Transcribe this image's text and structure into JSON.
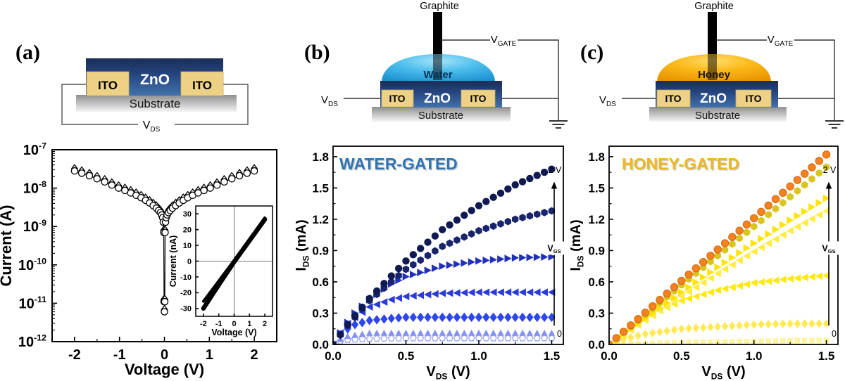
{
  "panels": {
    "a": {
      "label": "(a)",
      "schematic": {
        "zno": "ZnO",
        "ito_left": "ITO",
        "ito_right": "ITO",
        "substrate": "Substrate",
        "vds": {
          "main": "V",
          "sub": "DS"
        }
      }
    },
    "b": {
      "label": "(b)",
      "schematic": {
        "graphite": "Graphite",
        "liquid": "Water",
        "zno": "ZnO",
        "ito_left": "ITO",
        "ito_right": "ITO",
        "substrate": "Substrate",
        "vds": {
          "main": "V",
          "sub": "DS"
        },
        "vgate": {
          "main": "V",
          "sub": "GATE"
        }
      }
    },
    "c": {
      "label": "(c)",
      "schematic": {
        "graphite": "Graphite",
        "liquid": "Honey",
        "zno": "ZnO",
        "ito_left": "ITO",
        "ito_right": "ITO",
        "substrate": "Substrate",
        "vds": {
          "main": "V",
          "sub": "DS"
        },
        "vgate": {
          "main": "V",
          "sub": "GATE"
        }
      }
    }
  },
  "colors": {
    "water_accent": "#35B3E8",
    "honey_accent": "#F7AC00",
    "water_title": "#2E74B5",
    "honey_title": "#EFB71A",
    "zno_dark": "#1A2E57",
    "zno_light": "#4271AC",
    "ito_fill": "#EDD186"
  },
  "chart_data": [
    {
      "id": "iv_semilog",
      "type": "scatter",
      "xlabel": [
        {
          "t": "Voltage (V)"
        }
      ],
      "ylabel": [
        {
          "t": "Current (A)"
        }
      ],
      "xlim": [
        -2.5,
        2.5
      ],
      "ylog": true,
      "ylim_exp": [
        -12,
        -7
      ],
      "xticks": [
        -2,
        -1,
        0,
        1,
        2
      ],
      "xtick_labels": [
        "-2",
        "-1",
        "0",
        "1",
        "2"
      ],
      "x_minor": [
        -1.5,
        -0.5,
        0.5,
        1.5
      ],
      "ytick_exponents": [
        -7,
        -8,
        -9,
        -10,
        -11,
        -12
      ],
      "grid": false,
      "x": [
        -2.0,
        -1.84,
        -1.67,
        -1.5,
        -1.33,
        -1.17,
        -1.02,
        -0.88,
        -0.75,
        -0.63,
        -0.52,
        -0.42,
        -0.33,
        -0.25,
        -0.18,
        -0.13,
        -0.09,
        -0.06,
        -0.04,
        -0.025,
        -0.015,
        -0.008,
        0,
        0.008,
        0.015,
        0.025,
        0.04,
        0.06,
        0.09,
        0.13,
        0.18,
        0.25,
        0.33,
        0.42,
        0.52,
        0.63,
        0.75,
        0.88,
        1.02,
        1.17,
        1.33,
        1.5,
        1.67,
        1.84,
        2.0
      ],
      "y": [
        2.8e-08,
        2.45e-08,
        2.1e-08,
        1.75e-08,
        1.45e-08,
        1.2e-08,
        1e-08,
        8.7e-09,
        7.5e-09,
        6.5e-09,
        5.6e-09,
        4.8e-09,
        4.1e-09,
        3.5e-09,
        3e-09,
        2.6e-09,
        2.3e-09,
        2e-09,
        1.7e-09,
        1.3e-09,
        7e-10,
        1.1e-11,
        6e-12,
        1.1e-11,
        7e-10,
        1.3e-09,
        1.7e-09,
        2e-09,
        2.3e-09,
        2.6e-09,
        3e-09,
        3.5e-09,
        4.1e-09,
        4.8e-09,
        5.6e-09,
        6.5e-09,
        7.5e-09,
        8.7e-09,
        1e-08,
        1.2e-08,
        1.45e-08,
        1.75e-08,
        2.1e-08,
        2.45e-08,
        2.8e-08
      ],
      "series": [
        {
          "name": "sweep-circles",
          "marker": "circle",
          "open": true,
          "color": "#000000",
          "size": 4.6,
          "y_scale": 1
        },
        {
          "name": "sweep-diamonds",
          "marker": "diamond",
          "open": true,
          "color": "#000000",
          "size": 4.4,
          "y_scale": 1.15
        }
      ],
      "connect_line": true
    },
    {
      "id": "iv_linear_inset",
      "type": "line",
      "xlabel": [
        {
          "t": "Voltage (V)"
        }
      ],
      "ylabel": [
        {
          "t": "Current (nA)"
        }
      ],
      "xlim": [
        -2.5,
        2.5
      ],
      "ylim": [
        -35,
        35
      ],
      "xticks": [
        -2,
        -1,
        0,
        1,
        2
      ],
      "xtick_labels": [
        "-2",
        "-1",
        "0",
        "1",
        "2"
      ],
      "yticks": [
        -30,
        -20,
        -10,
        0,
        10,
        20,
        30
      ],
      "ytick_labels": [
        "-30",
        "-20",
        "-10",
        "0",
        "10",
        "20",
        "30"
      ],
      "crosshair": true,
      "series": [
        {
          "name": "sweep-band-1",
          "line": true,
          "width": 6.5,
          "color": "#000000",
          "x": [
            -2,
            -1,
            0,
            1,
            2
          ],
          "y": [
            -30,
            -15,
            -0.5,
            13,
            26.5
          ]
        },
        {
          "name": "sweep-band-2",
          "line": true,
          "width": 4,
          "color": "#000000",
          "x": [
            -2,
            -1,
            0,
            1,
            2
          ],
          "y": [
            -25.5,
            -12.5,
            0.5,
            14,
            27.5
          ]
        }
      ]
    },
    {
      "id": "water_output",
      "type": "scatter",
      "title": "WATER-GATED",
      "title_color": "#2E74B5",
      "xlabel": [
        {
          "t": "V"
        },
        {
          "t": "DS",
          "sub": true
        },
        {
          "t": " (V)"
        }
      ],
      "ylabel": [
        {
          "t": "I"
        },
        {
          "t": "DS",
          "sub": true
        },
        {
          "t": " (mA)"
        }
      ],
      "xlim": [
        0,
        1.58
      ],
      "ylim": [
        0,
        1.9
      ],
      "xticks": [
        0,
        0.5,
        1.0,
        1.5
      ],
      "xtick_labels": [
        "0.0",
        "0.5",
        "1.0",
        "1.5"
      ],
      "x_minor": [
        0.25,
        0.75,
        1.25
      ],
      "yticks": [
        0,
        0.3,
        0.6,
        0.9,
        1.2,
        1.5,
        1.8
      ],
      "ytick_labels": [
        "0.0",
        "0.3",
        "0.6",
        "0.9",
        "1.2",
        "1.5",
        "1.8"
      ],
      "y_minor": [
        0.15,
        0.45,
        0.75,
        1.05,
        1.35,
        1.65
      ],
      "gate": {
        "top": "2 V",
        "bottom": "0",
        "label_main": "V",
        "label_sub": "GS"
      },
      "gate_v_range": [
        0,
        2
      ],
      "series": [
        {
          "name": "vgs-max-2V",
          "i_at_1p5V": 1.68,
          "marker": "circle",
          "color": "#101A52",
          "size": 5.2,
          "x": [
            0,
            0.1,
            0.25,
            0.5,
            0.75,
            1,
            1.25,
            1.5
          ],
          "y": [
            0,
            0.19,
            0.44,
            0.8,
            1.1,
            1.33,
            1.53,
            1.68
          ]
        },
        {
          "name": "vgs-level-6",
          "i_at_1p5V": 1.28,
          "marker": "hexagon",
          "color": "#18246B",
          "size": 5.4,
          "x": [
            0,
            0.1,
            0.25,
            0.5,
            0.75,
            1,
            1.25,
            1.5
          ],
          "y": [
            0,
            0.18,
            0.42,
            0.72,
            0.94,
            1.09,
            1.2,
            1.28
          ]
        },
        {
          "name": "vgs-level-5",
          "i_at_1p5V": 0.84,
          "marker": "tri-right",
          "color": "#2130B8",
          "size": 5.4,
          "x": [
            0,
            0.05,
            0.1,
            0.15,
            0.25,
            0.4,
            0.5,
            0.75,
            1,
            1.25,
            1.5
          ],
          "y": [
            0,
            0.11,
            0.21,
            0.3,
            0.43,
            0.58,
            0.65,
            0.75,
            0.8,
            0.83,
            0.84
          ]
        },
        {
          "name": "vgs-level-4",
          "i_at_1p5V": 0.5,
          "marker": "tri-left",
          "color": "#2A3BD8",
          "size": 5.4,
          "x": [
            0,
            0.05,
            0.1,
            0.15,
            0.25,
            0.4,
            0.5,
            0.75,
            1,
            1.25,
            1.5
          ],
          "y": [
            0,
            0.11,
            0.2,
            0.26,
            0.36,
            0.43,
            0.46,
            0.49,
            0.5,
            0.5,
            0.5
          ]
        },
        {
          "name": "vgs-level-3",
          "i_at_1p5V": 0.26,
          "marker": "diamond",
          "color": "#2D47F0",
          "size": 5.4,
          "x": [
            0,
            0.05,
            0.1,
            0.15,
            0.25,
            0.4,
            0.5,
            0.75,
            1,
            1.25,
            1.5
          ],
          "y": [
            0,
            0.09,
            0.15,
            0.19,
            0.23,
            0.25,
            0.26,
            0.26,
            0.26,
            0.26,
            0.26
          ]
        },
        {
          "name": "vgs-level-2",
          "i_at_1p5V": 0.11,
          "marker": "tri-up",
          "color": "#8591F3",
          "size": 4.8,
          "x": [
            0,
            0.05,
            0.1,
            0.15,
            0.25,
            0.5,
            1,
            1.5
          ],
          "y": [
            0,
            0.05,
            0.08,
            0.09,
            0.11,
            0.11,
            0.11,
            0.11
          ]
        },
        {
          "name": "vgs-min-0V",
          "i_at_1p5V": 0.06,
          "marker": "pentagon",
          "color": "#9AA6F6",
          "open": true,
          "size": 4.6,
          "x": [
            0,
            0.05,
            0.1,
            0.25,
            0.5,
            1,
            1.5
          ],
          "y": [
            0,
            0.03,
            0.045,
            0.055,
            0.06,
            0.06,
            0.06
          ]
        }
      ]
    },
    {
      "id": "honey_output",
      "type": "scatter",
      "title": "HONEY-GATED",
      "title_color": "#EFB71A",
      "xlabel": [
        {
          "t": "V"
        },
        {
          "t": "DS",
          "sub": true
        },
        {
          "t": " (V)"
        }
      ],
      "ylabel": [
        {
          "t": "I"
        },
        {
          "t": "DS",
          "sub": true
        },
        {
          "t": " (mA)"
        }
      ],
      "xlim": [
        0,
        1.58
      ],
      "ylim": [
        0,
        1.9
      ],
      "xticks": [
        0,
        0.5,
        1.0,
        1.5
      ],
      "xtick_labels": [
        "0.0",
        "0.5",
        "1.0",
        "1.5"
      ],
      "x_minor": [
        0.25,
        0.75,
        1.25
      ],
      "yticks": [
        0,
        0.3,
        0.6,
        0.9,
        1.2,
        1.5,
        1.8
      ],
      "ytick_labels": [
        "0.0",
        "0.3",
        "0.6",
        "0.9",
        "1.2",
        "1.5",
        "1.8"
      ],
      "y_minor": [
        0.15,
        0.45,
        0.75,
        1.05,
        1.35,
        1.65
      ],
      "gate": {
        "top": "2 V",
        "bottom": "0",
        "label_main": "V",
        "label_sub": "GS"
      },
      "gate_v_range": [
        0,
        2
      ],
      "series": [
        {
          "name": "vgs-max-2V",
          "i_at_1p5V": 1.82,
          "marker": "circle",
          "color": "#F5821F",
          "edge": "#D2660C",
          "size": 5.2,
          "x": [
            0,
            0.5,
            1,
            1.5
          ],
          "y": [
            0,
            0.61,
            1.21,
            1.82
          ]
        },
        {
          "name": "vgs-level-6",
          "i_at_1p5V": 1.7,
          "marker": "hexagon",
          "color": "#D8C51E",
          "size": 5.4,
          "x": [
            0,
            0.5,
            1,
            1.5
          ],
          "y": [
            0,
            0.57,
            1.13,
            1.7
          ]
        },
        {
          "name": "vgs-level-5",
          "i_at_1p5V": 1.4,
          "marker": "tri-right",
          "color": "#FFE400",
          "size": 5.4,
          "x": [
            0,
            0.25,
            0.5,
            0.75,
            1,
            1.25,
            1.5
          ],
          "y": [
            0,
            0.25,
            0.5,
            0.74,
            0.97,
            1.19,
            1.4
          ]
        },
        {
          "name": "vgs-level-4",
          "i_at_1p5V": 1.28,
          "marker": "tri-left",
          "color": "#FFEC42",
          "size": 5.4,
          "x": [
            0,
            0.25,
            0.5,
            0.75,
            1,
            1.25,
            1.5
          ],
          "y": [
            0,
            0.23,
            0.46,
            0.68,
            0.89,
            1.09,
            1.28
          ]
        },
        {
          "name": "vgs-level-3",
          "i_at_1p5V": 0.66,
          "marker": "tri-left",
          "color": "#FFE90A",
          "size": 5.4,
          "x": [
            0,
            0.1,
            0.25,
            0.5,
            0.75,
            1,
            1.25,
            1.5
          ],
          "y": [
            0,
            0.12,
            0.26,
            0.42,
            0.52,
            0.59,
            0.63,
            0.66
          ]
        },
        {
          "name": "vgs-level-2",
          "i_at_1p5V": 0.2,
          "marker": "diamond",
          "color": "#FFEA55",
          "size": 5,
          "x": [
            0,
            0.1,
            0.25,
            0.5,
            0.75,
            1,
            1.25,
            1.5
          ],
          "y": [
            0,
            0.05,
            0.1,
            0.15,
            0.17,
            0.19,
            0.2,
            0.2
          ]
        },
        {
          "name": "vgs-min-0V",
          "i_at_1p5V": 0.04,
          "marker": "square",
          "color": "#FFF3A0",
          "size": 4.4,
          "x": [
            0,
            0.5,
            1,
            1.5
          ],
          "y": [
            0,
            0.02,
            0.03,
            0.04
          ]
        }
      ]
    }
  ]
}
